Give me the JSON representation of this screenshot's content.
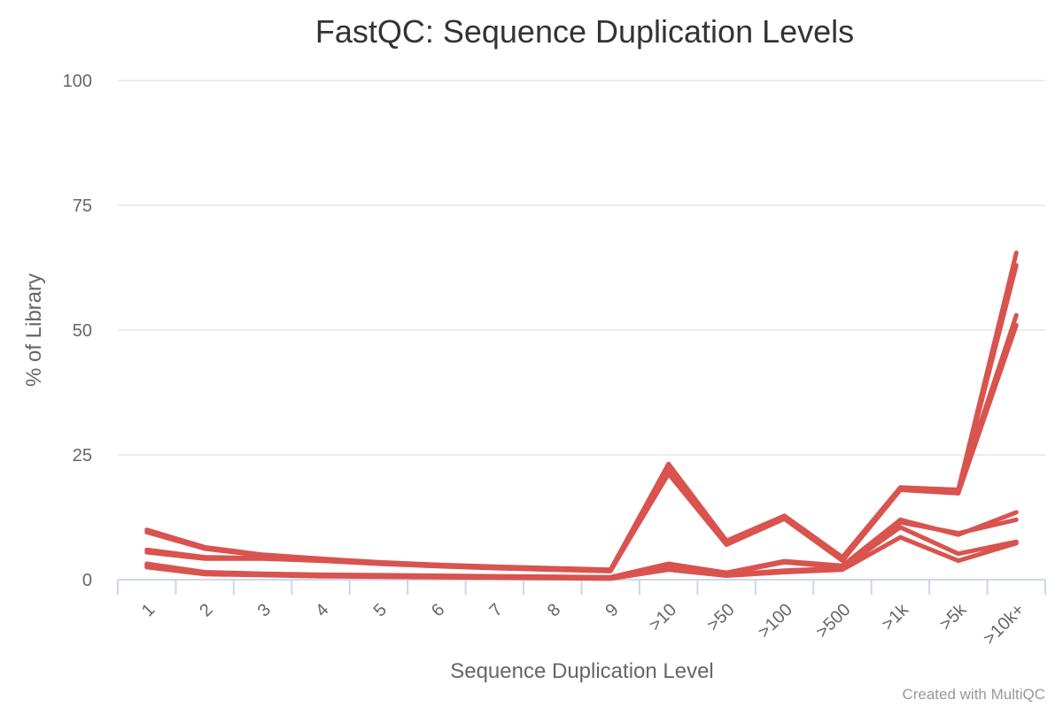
{
  "chart_data": {
    "type": "line",
    "title": "FastQC: Sequence Duplication Levels",
    "xlabel": "Sequence Duplication Level",
    "ylabel": "% of Library",
    "categories": [
      "1",
      "2",
      "3",
      "4",
      "5",
      "6",
      "7",
      "8",
      "9",
      ">10",
      ">50",
      ">100",
      ">500",
      ">1k",
      ">5k",
      ">10k+"
    ],
    "ylim": [
      0,
      100
    ],
    "yticks": [
      0,
      25,
      50,
      75,
      100
    ],
    "grid": true,
    "legend": "none",
    "series_color": "#d9534f",
    "series": [
      {
        "values": [
          10.0,
          6.5,
          5.0,
          4.2,
          3.5,
          3.0,
          2.6,
          2.3,
          2.0,
          23.2,
          7.8,
          12.8,
          4.5,
          18.5,
          18.0,
          65.5
        ]
      },
      {
        "values": [
          9.5,
          6.2,
          4.8,
          4.0,
          3.4,
          2.9,
          2.5,
          2.2,
          1.9,
          22.0,
          7.3,
          12.5,
          4.2,
          18.2,
          17.5,
          63.0
        ]
      },
      {
        "values": [
          6.0,
          4.5,
          4.3,
          3.9,
          3.3,
          2.8,
          2.4,
          2.1,
          1.8,
          21.2,
          7.0,
          12.2,
          3.8,
          18.0,
          17.3,
          51.0
        ]
      },
      {
        "values": [
          5.5,
          4.2,
          4.2,
          3.8,
          3.2,
          2.7,
          2.3,
          2.0,
          1.7,
          21.8,
          7.5,
          12.6,
          4.0,
          18.3,
          18.0,
          53.0
        ]
      },
      {
        "values": [
          3.2,
          1.5,
          1.2,
          1.0,
          0.9,
          0.8,
          0.7,
          0.6,
          0.5,
          3.2,
          1.4,
          3.7,
          2.8,
          12.0,
          9.0,
          13.5
        ]
      },
      {
        "values": [
          3.0,
          1.4,
          1.1,
          0.9,
          0.8,
          0.7,
          0.6,
          0.5,
          0.4,
          2.8,
          1.2,
          3.5,
          2.5,
          11.5,
          9.3,
          12.0
        ]
      },
      {
        "values": [
          2.7,
          1.2,
          1.0,
          0.8,
          0.7,
          0.6,
          0.5,
          0.4,
          0.3,
          2.4,
          1.0,
          1.8,
          2.3,
          10.5,
          5.2,
          7.6
        ]
      },
      {
        "values": [
          2.5,
          1.1,
          0.9,
          0.7,
          0.6,
          0.5,
          0.4,
          0.3,
          0.2,
          2.0,
          0.8,
          1.5,
          2.0,
          8.5,
          3.8,
          7.3
        ]
      }
    ]
  },
  "credit": "Created with MultiQC"
}
